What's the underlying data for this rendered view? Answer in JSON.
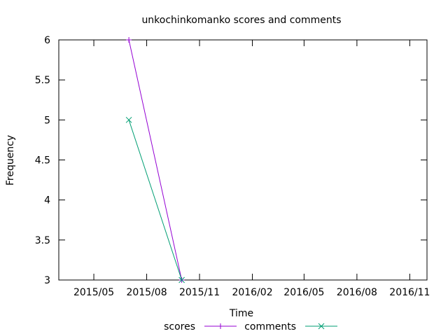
{
  "chart_data": {
    "type": "line",
    "title": "unkochinkomanko scores and comments",
    "xlabel": "Time",
    "ylabel": "Frequency",
    "x_type": "date",
    "xlim": [
      "2015-03-01",
      "2016-12-01"
    ],
    "ylim": [
      3,
      6
    ],
    "x_ticks": [
      {
        "value": "2015-05-01",
        "label": "2015/05"
      },
      {
        "value": "2015-08-01",
        "label": "2015/08"
      },
      {
        "value": "2015-11-01",
        "label": "2015/11"
      },
      {
        "value": "2016-02-01",
        "label": "2016/02"
      },
      {
        "value": "2016-05-01",
        "label": "2016/05"
      },
      {
        "value": "2016-08-01",
        "label": "2016/08"
      },
      {
        "value": "2016-11-01",
        "label": "2016/11"
      }
    ],
    "y_ticks": [
      {
        "value": 3,
        "label": "3"
      },
      {
        "value": 3.5,
        "label": "3.5"
      },
      {
        "value": 4,
        "label": "4"
      },
      {
        "value": 4.5,
        "label": "4.5"
      },
      {
        "value": 5,
        "label": "5"
      },
      {
        "value": 5.5,
        "label": "5.5"
      },
      {
        "value": 6,
        "label": "6"
      }
    ],
    "grid": false,
    "legend_position": "bottom",
    "series": [
      {
        "name": "scores",
        "color": "#9400d3",
        "marker": "plus",
        "points": [
          {
            "x": "2015-07-01",
            "y": 6
          },
          {
            "x": "2015-10-01",
            "y": 3
          }
        ]
      },
      {
        "name": "comments",
        "color": "#009e73",
        "marker": "x",
        "points": [
          {
            "x": "2015-07-01",
            "y": 5
          },
          {
            "x": "2015-10-01",
            "y": 3
          }
        ]
      }
    ]
  }
}
